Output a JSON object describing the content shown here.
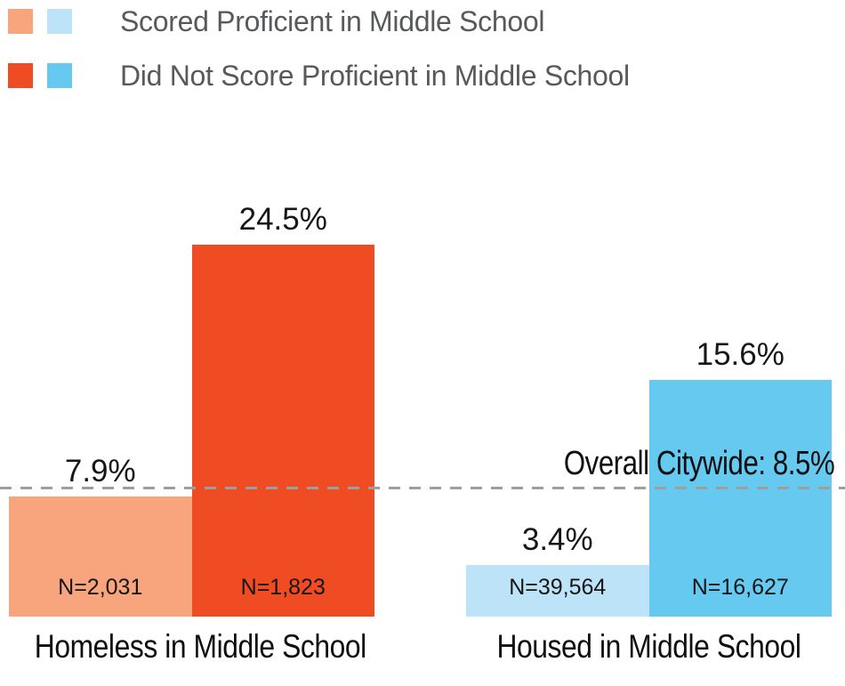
{
  "colors": {
    "proficient_homeless": "#F8A47D",
    "not_proficient_homeless": "#F04C23",
    "proficient_housed": "#BCE3F8",
    "not_proficient_housed": "#66C9F0",
    "legend_text": "#58595B",
    "reference_line": "#9E9E9E",
    "label_text": "#161616"
  },
  "legend": {
    "rows": [
      {
        "label": "Scored Proficient in Middle School",
        "swatch_colors": [
          "#F8A47D",
          "#BCE3F8"
        ]
      },
      {
        "label": "Did Not Score Proficient in Middle School",
        "swatch_colors": [
          "#F04C23",
          "#66C9F0"
        ]
      }
    ]
  },
  "chart_data": {
    "type": "bar",
    "unit": "%",
    "y_axis_visible": false,
    "grid": false,
    "legend_position": "top-left",
    "categories": [
      "Homeless in Middle School",
      "Housed in Middle School"
    ],
    "series": [
      {
        "name": "Scored Proficient in Middle School",
        "values": [
          7.9,
          3.4
        ]
      },
      {
        "name": "Did Not Score Proficient in Middle School",
        "values": [
          24.5,
          15.6
        ]
      }
    ],
    "groups": [
      {
        "category": "Homeless in Middle School",
        "bars": [
          {
            "series": "Scored Proficient in Middle School",
            "value": 7.9,
            "label": "7.9%",
            "n_label": "N=2,031",
            "color": "#F8A47D"
          },
          {
            "series": "Did Not Score Proficient in Middle School",
            "value": 24.5,
            "label": "24.5%",
            "n_label": "N=1,823",
            "color": "#F04C23"
          }
        ]
      },
      {
        "category": "Housed in Middle School",
        "bars": [
          {
            "series": "Scored Proficient in Middle School",
            "value": 3.4,
            "label": "3.4%",
            "n_label": "N=39,564",
            "color": "#BCE3F8"
          },
          {
            "series": "Did Not Score Proficient in Middle School",
            "value": 15.6,
            "label": "15.6%",
            "n_label": "N=16,627",
            "color": "#66C9F0"
          }
        ]
      }
    ],
    "reference_line": {
      "value": 8.5,
      "label": "Overall Citywide: 8.5%"
    },
    "ylim": [
      0,
      27
    ]
  }
}
